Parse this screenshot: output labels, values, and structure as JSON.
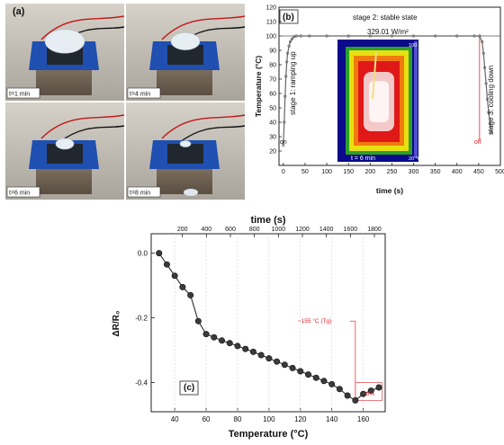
{
  "figures": {
    "a": {
      "panel_label": "(a)",
      "photos": [
        {
          "time_label": "t=1 min"
        },
        {
          "time_label": "t=4 min"
        },
        {
          "time_label": "t=6 min"
        },
        {
          "time_label": "t=8 min"
        }
      ]
    }
  },
  "chart_data": [
    {
      "id": "b",
      "type": "line",
      "panel_label": "(b)",
      "xlabel": "time (s)",
      "ylabel": "Temperature (°C)",
      "xlim": [
        -10,
        500
      ],
      "ylim": [
        10,
        120
      ],
      "xticks": [
        0,
        50,
        100,
        150,
        200,
        250,
        300,
        350,
        400,
        450,
        500
      ],
      "yticks": [
        20,
        30,
        40,
        50,
        60,
        70,
        80,
        90,
        100,
        110,
        120
      ],
      "grid": false,
      "series": [
        {
          "color": "#666666",
          "x": [
            0,
            2,
            4,
            6,
            8,
            10,
            13,
            16,
            20,
            25,
            30,
            40,
            60,
            100,
            150,
            200,
            250,
            300,
            350,
            400,
            440,
            452,
            458,
            461,
            464,
            467,
            470,
            473,
            476,
            479
          ],
          "y": [
            24,
            40,
            58,
            72,
            82,
            88,
            93,
            96,
            98,
            99.5,
            100,
            100,
            100,
            100,
            100,
            100,
            100,
            100,
            100,
            100,
            100,
            100,
            96,
            88,
            78,
            67,
            56,
            47,
            39,
            33
          ]
        }
      ],
      "annotations": {
        "stage2": "stage 2: stable state",
        "power": "329.01 W/m²",
        "stage1": "stage 1: ramping up",
        "stage3": "stage 3: cooling down",
        "on": "on",
        "off": "off",
        "inset_time": "t = 6 min",
        "inset_max": "100 °C",
        "inset_min": "20 °C"
      },
      "markers": {
        "power_line_y": 100,
        "off_x": 452
      },
      "colors": {
        "off_line": "#e8242a",
        "power_line": "#555555"
      }
    },
    {
      "id": "c",
      "type": "line",
      "panel_label": "(c)",
      "xlabel": "Temperature (°C)",
      "ylabel": "ΔR/R₀",
      "x2label": "time (s)",
      "xlim": [
        25,
        174
      ],
      "ylim": [
        -0.49,
        0.06
      ],
      "xticks": [
        40,
        60,
        80,
        100,
        120,
        140,
        160
      ],
      "yticks": [
        0.0,
        -0.2,
        -0.4
      ],
      "ytick_labels": [
        "0.0",
        "-0.2",
        "-0.4"
      ],
      "x2ticks": [
        200,
        400,
        600,
        800,
        1000,
        1200,
        1400,
        1600,
        1800
      ],
      "x2lim": [
        -60,
        1890
      ],
      "grid": false,
      "series": [
        {
          "color": "#1a1a1a",
          "x": [
            30,
            35,
            40,
            45,
            50,
            55,
            60,
            65,
            70,
            75,
            80,
            85,
            90,
            95,
            100,
            105,
            110,
            115,
            120,
            125,
            130,
            135,
            140,
            145,
            150,
            155,
            160,
            165,
            170
          ],
          "y": [
            0.0,
            -0.035,
            -0.07,
            -0.105,
            -0.13,
            -0.21,
            -0.25,
            -0.26,
            -0.27,
            -0.278,
            -0.287,
            -0.296,
            -0.305,
            -0.315,
            -0.325,
            -0.335,
            -0.345,
            -0.355,
            -0.365,
            -0.375,
            -0.385,
            -0.395,
            -0.405,
            -0.42,
            -0.44,
            -0.455,
            -0.435,
            -0.425,
            -0.415
          ]
        }
      ],
      "annotations": {
        "tg": "~155 °C (Tg)",
        "drop": "~9%"
      },
      "markers": {
        "tg_x": 155,
        "tg_y": -0.455
      },
      "colors": {
        "annotation": "#e8242a"
      }
    }
  ]
}
